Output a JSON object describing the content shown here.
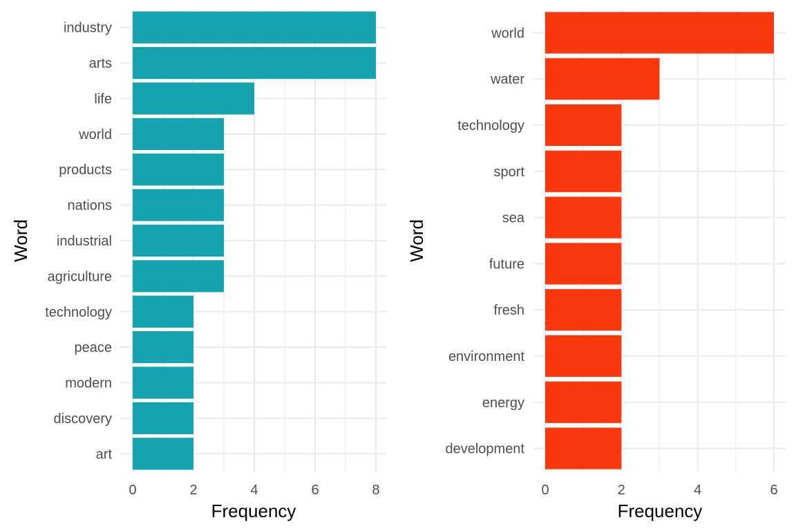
{
  "chart_data": [
    {
      "type": "bar",
      "orientation": "horizontal",
      "categories": [
        "industry",
        "arts",
        "life",
        "world",
        "products",
        "nations",
        "industrial",
        "agriculture",
        "technology",
        "peace",
        "modern",
        "discovery",
        "art"
      ],
      "values": [
        8,
        8,
        4,
        3,
        3,
        3,
        3,
        3,
        2,
        2,
        2,
        2,
        2
      ],
      "xlabel": "Frequency",
      "ylabel": "Word",
      "xlim": [
        0,
        8
      ],
      "xticks": [
        0,
        2,
        4,
        6,
        8
      ],
      "grid": true,
      "color": "#16A3B0"
    },
    {
      "type": "bar",
      "orientation": "horizontal",
      "categories": [
        "world",
        "water",
        "technology",
        "sport",
        "sea",
        "future",
        "fresh",
        "environment",
        "energy",
        "development"
      ],
      "values": [
        6,
        3,
        2,
        2,
        2,
        2,
        2,
        2,
        2,
        2
      ],
      "xlabel": "Frequency",
      "ylabel": "Word",
      "xlim": [
        0,
        6
      ],
      "xticks": [
        0,
        2,
        4,
        6
      ],
      "grid": true,
      "color": "#F9380E"
    }
  ]
}
